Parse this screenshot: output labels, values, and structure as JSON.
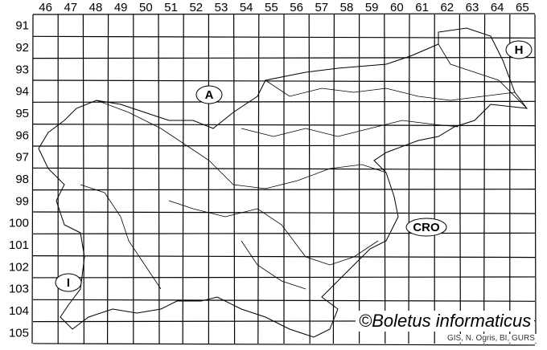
{
  "map": {
    "columns": [
      "46",
      "47",
      "48",
      "49",
      "50",
      "51",
      "52",
      "53",
      "54",
      "55",
      "56",
      "57",
      "58",
      "59",
      "60",
      "61",
      "62",
      "63",
      "64",
      "65"
    ],
    "rows": [
      "91",
      "92",
      "93",
      "94",
      "95",
      "96",
      "97",
      "98",
      "99",
      "100",
      "101",
      "102",
      "103",
      "104",
      "105"
    ],
    "country_labels": [
      {
        "id": "austria",
        "text": "A"
      },
      {
        "id": "hungary",
        "text": "H"
      },
      {
        "id": "croatia",
        "text": "CRO"
      },
      {
        "id": "italy",
        "text": "I"
      }
    ],
    "credit": "©Boletus informaticus",
    "source": "GIS, N. Ogris, BI, GURS",
    "line_color": "#000000"
  }
}
